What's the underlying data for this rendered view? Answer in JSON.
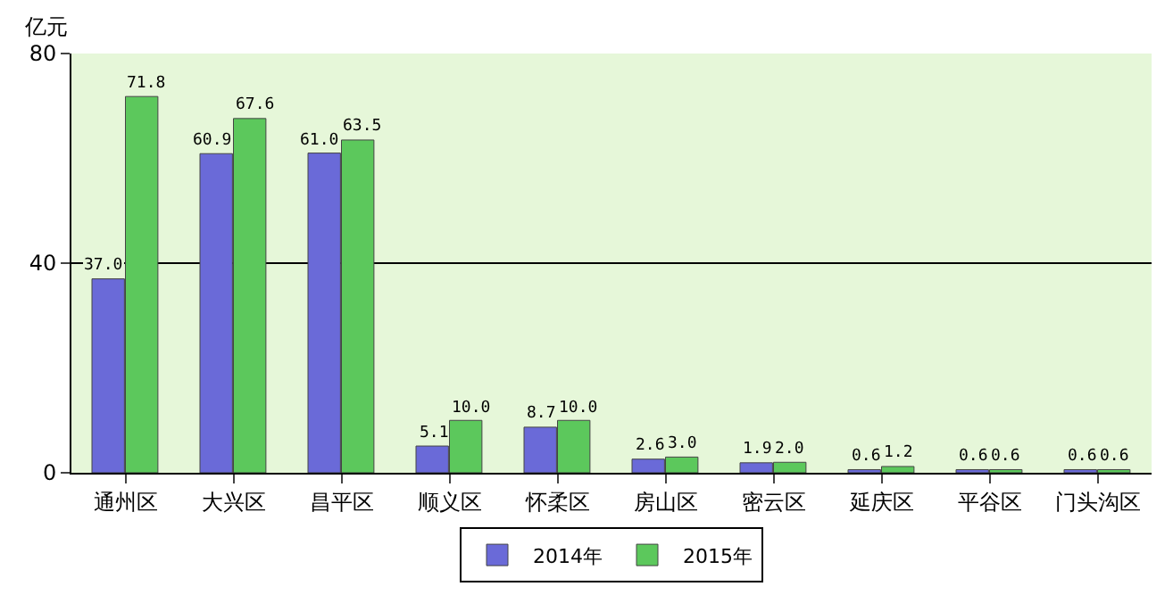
{
  "chart_data": {
    "type": "bar",
    "ylabel": "亿元",
    "categories": [
      "通州区",
      "大兴区",
      "昌平区",
      "顺义区",
      "怀柔区",
      "房山区",
      "密云区",
      "延庆区",
      "平谷区",
      "门头沟区"
    ],
    "series": [
      {
        "name": "2014年",
        "color": "#6a6ad8",
        "values": [
          37.0,
          60.9,
          61.0,
          5.1,
          8.7,
          2.6,
          1.9,
          0.6,
          0.6,
          0.6
        ],
        "value_labels": [
          "37.0",
          "60.9",
          "61.0",
          "5.1",
          "8.7",
          "2.6",
          "1.9",
          "0.6",
          "0.6",
          "0.6"
        ]
      },
      {
        "name": "2015年",
        "color": "#5cc85c",
        "values": [
          71.8,
          67.6,
          63.5,
          10.0,
          10.0,
          3.0,
          2.0,
          1.2,
          0.6,
          0.6
        ],
        "value_labels": [
          "71.8",
          "67.6",
          "63.5",
          "10.0",
          "10.0",
          "3.0",
          "2.0",
          "1.2",
          "0.6",
          "0.6"
        ]
      }
    ],
    "ylim": [
      0,
      80
    ],
    "yticks": [
      0,
      40,
      80
    ],
    "grid": "y",
    "legend": "bottom"
  }
}
